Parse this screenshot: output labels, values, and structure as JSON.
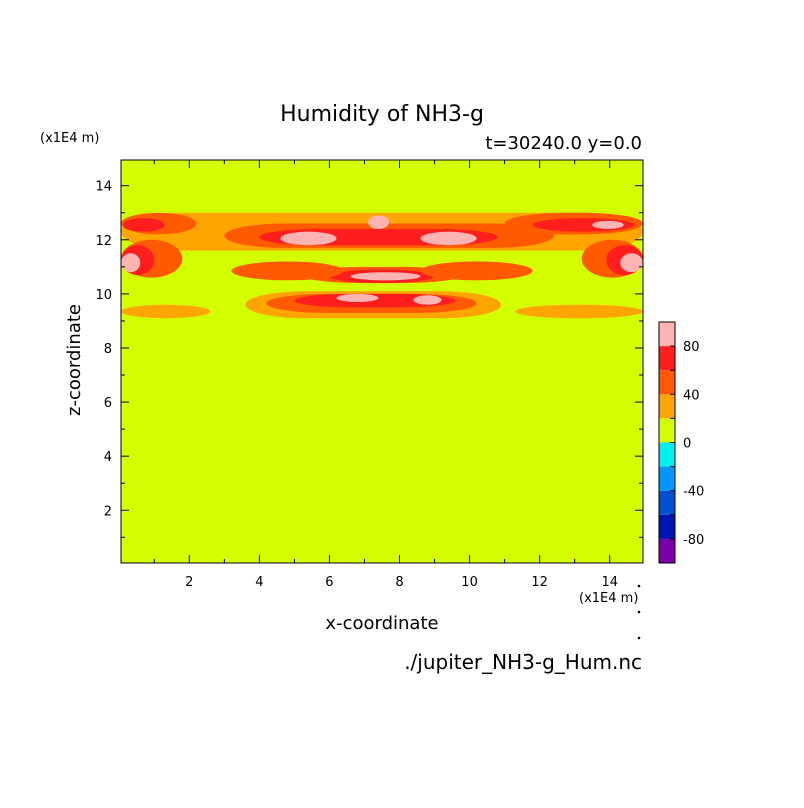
{
  "chart_data": {
    "type": "heatmap",
    "title": "Humidity of NH3-g",
    "subtitle": "t=30240.0 y=0.0",
    "xlabel": "x-coordinate",
    "ylabel": "z-coordinate",
    "x_unit": "(x1E4 m)",
    "y_unit": "(x1E4 m)",
    "xlim": [
      0.05,
      14.95
    ],
    "ylim": [
      0.05,
      14.95
    ],
    "x_ticks": [
      "2",
      "4",
      "6",
      "8",
      "10",
      "12",
      "14"
    ],
    "y_ticks": [
      "2",
      "4",
      "6",
      "8",
      "10",
      "12",
      "14"
    ],
    "footer": "./jupiter_NH3-g_Hum.nc",
    "colorbar": {
      "levels": [
        -100,
        -80,
        -60,
        -40,
        -20,
        0,
        20,
        40,
        60,
        80,
        100
      ],
      "tick_labels": [
        "80",
        "40",
        "0",
        "-40",
        "-80"
      ],
      "colors": [
        "#7a00a8",
        "#0014b4",
        "#0050d2",
        "#0096ff",
        "#00f0f0",
        "#d4ff00",
        "#ffa500",
        "#ff5a00",
        "#ff1e1e",
        "#ffb4b4"
      ]
    },
    "background_value_range": [
      0,
      20
    ],
    "regions": [
      {
        "category": "20-40",
        "x": [
          3.6,
          10.9
        ],
        "z": [
          9.1,
          10.1
        ]
      },
      {
        "category": "20-40",
        "x": [
          0.05,
          2.6
        ],
        "z": [
          9.1,
          9.6
        ]
      },
      {
        "category": "20-40",
        "x": [
          11.3,
          14.95
        ],
        "z": [
          9.1,
          9.6
        ]
      },
      {
        "category": "20-40",
        "x": [
          0.05,
          14.95
        ],
        "z": [
          11.6,
          13.0
        ]
      },
      {
        "category": "40-60",
        "x": [
          4.2,
          10.2
        ],
        "z": [
          9.3,
          10.0
        ]
      },
      {
        "category": "60-80",
        "x": [
          5.0,
          9.6
        ],
        "z": [
          9.5,
          10.0
        ]
      },
      {
        "category": "80-100",
        "x": [
          6.2,
          7.4
        ],
        "z": [
          9.7,
          10.0
        ]
      },
      {
        "category": "80-100",
        "x": [
          8.4,
          9.2
        ],
        "z": [
          9.6,
          9.95
        ]
      },
      {
        "category": "40-60",
        "x": [
          5.2,
          9.8
        ],
        "z": [
          10.4,
          11.0
        ]
      },
      {
        "category": "60-80",
        "x": [
          6.0,
          9.0
        ],
        "z": [
          10.4,
          10.9
        ]
      },
      {
        "category": "80-100",
        "x": [
          6.6,
          8.6
        ],
        "z": [
          10.5,
          10.8
        ]
      },
      {
        "category": "40-60",
        "x": [
          3.0,
          12.4
        ],
        "z": [
          11.7,
          12.6
        ]
      },
      {
        "category": "60-80",
        "x": [
          4.0,
          10.8
        ],
        "z": [
          11.8,
          12.4
        ]
      },
      {
        "category": "80-100",
        "x": [
          4.6,
          6.2
        ],
        "z": [
          11.8,
          12.3
        ]
      },
      {
        "category": "80-100",
        "x": [
          8.6,
          10.2
        ],
        "z": [
          11.8,
          12.3
        ]
      },
      {
        "category": "80-100",
        "x": [
          7.1,
          7.7
        ],
        "z": [
          12.4,
          12.9
        ]
      },
      {
        "category": "40-60",
        "x": [
          0.05,
          1.8
        ],
        "z": [
          10.6,
          12.0
        ]
      },
      {
        "category": "60-80",
        "x": [
          0.05,
          1.0
        ],
        "z": [
          10.7,
          11.8
        ]
      },
      {
        "category": "80-100",
        "x": [
          0.05,
          0.6
        ],
        "z": [
          10.8,
          11.5
        ]
      },
      {
        "category": "40-60",
        "x": [
          13.2,
          14.95
        ],
        "z": [
          10.6,
          12.0
        ]
      },
      {
        "category": "60-80",
        "x": [
          13.9,
          14.95
        ],
        "z": [
          10.7,
          11.8
        ]
      },
      {
        "category": "80-100",
        "x": [
          14.3,
          14.95
        ],
        "z": [
          10.8,
          11.5
        ]
      },
      {
        "category": "40-60",
        "x": [
          0.05,
          2.2
        ],
        "z": [
          12.2,
          13.0
        ]
      },
      {
        "category": "60-80",
        "x": [
          0.1,
          1.3
        ],
        "z": [
          12.3,
          12.8
        ]
      },
      {
        "category": "40-60",
        "x": [
          11.0,
          14.95
        ],
        "z": [
          12.2,
          13.0
        ]
      },
      {
        "category": "60-80",
        "x": [
          11.8,
          14.7
        ],
        "z": [
          12.3,
          12.8
        ]
      },
      {
        "category": "80-100",
        "x": [
          13.5,
          14.4
        ],
        "z": [
          12.4,
          12.7
        ]
      },
      {
        "category": "40-60",
        "x": [
          3.2,
          6.4
        ],
        "z": [
          10.5,
          11.2
        ]
      },
      {
        "category": "40-60",
        "x": [
          8.6,
          11.8
        ],
        "z": [
          10.5,
          11.2
        ]
      }
    ]
  }
}
